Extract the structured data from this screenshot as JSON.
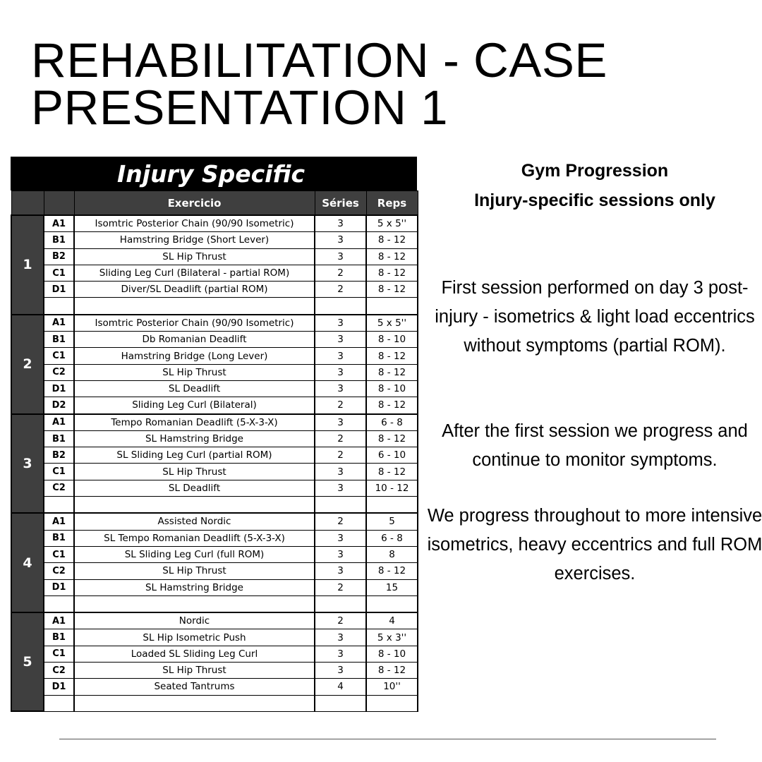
{
  "title": "REHABILITATION - CASE PRESENTATION 1",
  "table": {
    "heading": "Injury Specific",
    "columns": {
      "exercise": "Exercicio",
      "series": "Séries",
      "reps": "Reps"
    },
    "sessions": [
      {
        "label": "1",
        "rows": [
          {
            "code": "A1",
            "exercise": "Isomtric Posterior Chain (90/90 Isometric)",
            "series": "3",
            "reps": "5 x 5''"
          },
          {
            "code": "B1",
            "exercise": "Hamstring Bridge (Short Lever)",
            "series": "3",
            "reps": "8 - 12"
          },
          {
            "code": "B2",
            "exercise": "SL Hip Thrust",
            "series": "3",
            "reps": "8 - 12"
          },
          {
            "code": "C1",
            "exercise": "Sliding Leg Curl (Bilateral - partial ROM)",
            "series": "2",
            "reps": "8 - 12"
          },
          {
            "code": "D1",
            "exercise": "Diver/SL Deadlift (partial ROM)",
            "series": "2",
            "reps": "8 - 12"
          },
          {
            "code": "",
            "exercise": "",
            "series": "",
            "reps": ""
          }
        ]
      },
      {
        "label": "2",
        "rows": [
          {
            "code": "A1",
            "exercise": "Isomtric Posterior Chain (90/90 Isometric)",
            "series": "3",
            "reps": "5 x 5''"
          },
          {
            "code": "B1",
            "exercise": "Db Romanian Deadlift",
            "series": "3",
            "reps": "8 - 10"
          },
          {
            "code": "C1",
            "exercise": "Hamstring Bridge (Long Lever)",
            "series": "3",
            "reps": "8 - 12"
          },
          {
            "code": "C2",
            "exercise": "SL Hip Thrust",
            "series": "3",
            "reps": "8 - 12"
          },
          {
            "code": "D1",
            "exercise": "SL Deadlift",
            "series": "3",
            "reps": "8 - 10"
          },
          {
            "code": "D2",
            "exercise": "Sliding Leg Curl (Bilateral)",
            "series": "2",
            "reps": "8 - 12"
          }
        ]
      },
      {
        "label": "3",
        "rows": [
          {
            "code": "A1",
            "exercise": "Tempo Romanian Deadlift (5-X-3-X)",
            "series": "3",
            "reps": "6 - 8"
          },
          {
            "code": "B1",
            "exercise": "SL Hamstring Bridge",
            "series": "2",
            "reps": "8 - 12"
          },
          {
            "code": "B2",
            "exercise": "SL Sliding Leg Curl (partial ROM)",
            "series": "2",
            "reps": "6 - 10"
          },
          {
            "code": "C1",
            "exercise": "SL Hip Thrust",
            "series": "3",
            "reps": "8 - 12"
          },
          {
            "code": "C2",
            "exercise": "SL Deadlift",
            "series": "3",
            "reps": "10 - 12"
          },
          {
            "code": "",
            "exercise": "",
            "series": "",
            "reps": ""
          }
        ]
      },
      {
        "label": "4",
        "rows": [
          {
            "code": "A1",
            "exercise": "Assisted Nordic",
            "series": "2",
            "reps": "5"
          },
          {
            "code": "B1",
            "exercise": "SL Tempo Romanian Deadlift (5-X-3-X)",
            "series": "3",
            "reps": "6 - 8"
          },
          {
            "code": "C1",
            "exercise": "SL Sliding Leg Curl (full ROM)",
            "series": "3",
            "reps": "8"
          },
          {
            "code": "C2",
            "exercise": "SL Hip Thrust",
            "series": "3",
            "reps": "8 - 12"
          },
          {
            "code": "D1",
            "exercise": "SL Hamstring Bridge",
            "series": "2",
            "reps": "15"
          },
          {
            "code": "",
            "exercise": "",
            "series": "",
            "reps": ""
          }
        ]
      },
      {
        "label": "5",
        "rows": [
          {
            "code": "A1",
            "exercise": "Nordic",
            "series": "2",
            "reps": "4"
          },
          {
            "code": "B1",
            "exercise": "SL Hip Isometric Push",
            "series": "3",
            "reps": "5 x 3''"
          },
          {
            "code": "C1",
            "exercise": "Loaded SL Sliding Leg Curl",
            "series": "3",
            "reps": "8 - 10"
          },
          {
            "code": "C2",
            "exercise": "SL Hip Thrust",
            "series": "3",
            "reps": "8 - 12"
          },
          {
            "code": "D1",
            "exercise": "Seated Tantrums",
            "series": "4",
            "reps": "10''"
          },
          {
            "code": "",
            "exercise": "",
            "series": "",
            "reps": ""
          }
        ]
      }
    ]
  },
  "side": {
    "heading1": "Gym Progression",
    "heading2": "Injury-specific sessions only",
    "para1": "First session performed on day 3 post-injury - isometrics & light load eccentrics without symptoms (partial ROM).",
    "para2": "After the first session we progress and continue to monitor symptoms.",
    "para3": "We progress throughout to more intensive isometrics, heavy eccentrics and full ROM exercises."
  }
}
